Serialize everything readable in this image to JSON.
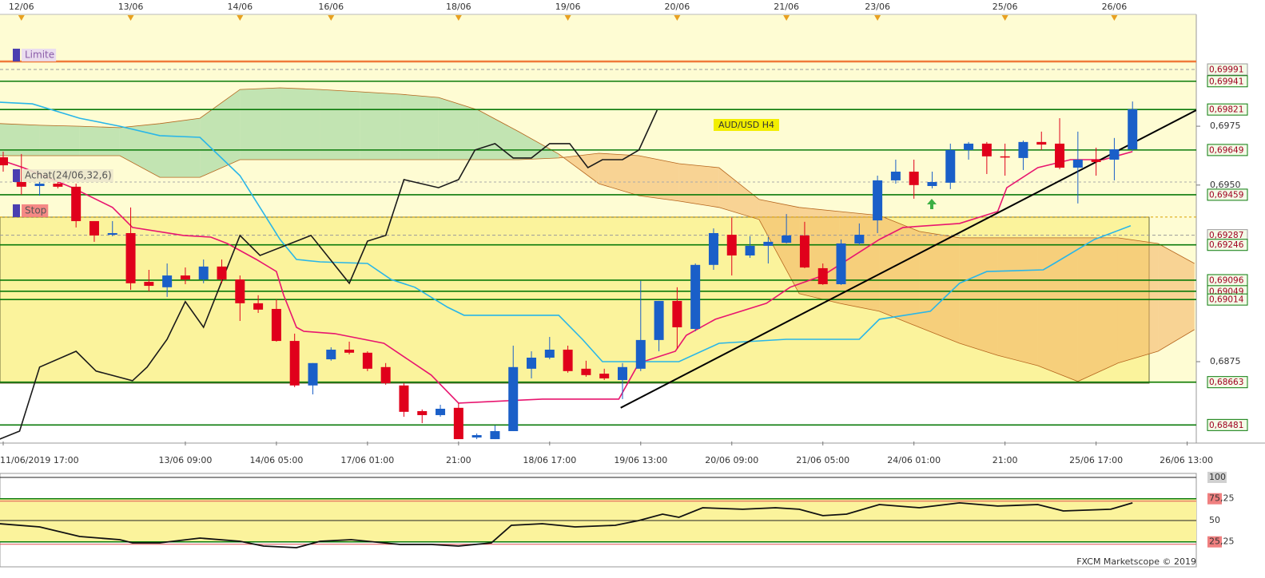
{
  "chart_data": {
    "type": "candlestick",
    "title": "AUD/USD H4",
    "up_color": "#1a5fc8",
    "down_color": "#e0001b",
    "open": [
      0.69618,
      0.69513,
      0.69496,
      0.69506,
      0.69493,
      0.69347,
      0.69289,
      0.69296,
      0.69089,
      0.69066,
      0.69116,
      0.69099,
      0.69154,
      0.69099,
      0.68998,
      0.68974,
      0.68838,
      0.68649,
      0.6876,
      0.68801,
      0.68788,
      0.68727,
      0.68649,
      0.6854,
      0.68523,
      0.68554,
      0.68428,
      0.68421,
      0.68455,
      0.6872,
      0.68767,
      0.68801,
      0.6872,
      0.68699,
      0.68672,
      0.6872,
      0.68842,
      0.69008,
      0.68889,
      0.69161,
      0.69289,
      0.69201,
      0.69242,
      0.69255,
      0.69286,
      0.69147,
      0.69079,
      0.69252,
      0.6935,
      0.6952,
      0.69557,
      0.69496,
      0.6951,
      0.69649,
      0.69676,
      0.69622,
      0.69615,
      0.69683,
      0.69676,
      0.69574,
      0.69608,
      0.69608,
      0.69652
    ],
    "high": [
      0.69642,
      0.69632,
      0.6952,
      0.69513,
      0.69506,
      0.69347,
      0.69347,
      0.69405,
      0.6914,
      0.69167,
      0.6915,
      0.69184,
      0.69184,
      0.69116,
      0.69032,
      0.69015,
      0.68869,
      0.68744,
      0.68811,
      0.68835,
      0.68794,
      0.68744,
      0.68659,
      0.68547,
      0.68567,
      0.68574,
      0.68445,
      0.68479,
      0.68818,
      0.68794,
      0.68855,
      0.68818,
      0.68754,
      0.6872,
      0.68744,
      0.69093,
      0.69008,
      0.69066,
      0.69167,
      0.69316,
      0.69361,
      0.69283,
      0.69279,
      0.69377,
      0.69344,
      0.69167,
      0.69269,
      0.69337,
      0.6954,
      0.69608,
      0.69608,
      0.69557,
      0.69676,
      0.69683,
      0.69683,
      0.69676,
      0.69689,
      0.69727,
      0.69784,
      0.69727,
      0.69659,
      0.697,
      0.69855
    ],
    "low": [
      0.69557,
      0.69459,
      0.69455,
      0.69486,
      0.6932,
      0.69259,
      0.69283,
      0.69055,
      0.69049,
      0.69025,
      0.69079,
      0.69083,
      0.69083,
      0.68923,
      0.68957,
      0.68835,
      0.68642,
      0.68611,
      0.68754,
      0.68781,
      0.6871,
      0.68652,
      0.68516,
      0.68489,
      0.68516,
      0.68421,
      0.68421,
      0.68421,
      0.68455,
      0.68679,
      0.6876,
      0.68703,
      0.68686,
      0.68672,
      0.68591,
      0.6871,
      0.68794,
      0.68805,
      0.68879,
      0.6914,
      0.69116,
      0.69191,
      0.69167,
      0.69252,
      0.69147,
      0.69076,
      0.69076,
      0.69245,
      0.69296,
      0.69506,
      0.69442,
      0.69486,
      0.69483,
      0.69608,
      0.69547,
      0.6954,
      0.69564,
      0.69649,
      0.69567,
      0.69422,
      0.6954,
      0.6952,
      0.69645
    ],
    "close": [
      0.69584,
      0.69493,
      0.69506,
      0.69493,
      0.69347,
      0.69286,
      0.69296,
      0.69083,
      0.69072,
      0.69116,
      0.69099,
      0.69154,
      0.69099,
      0.68998,
      0.68971,
      0.68838,
      0.68649,
      0.68744,
      0.68801,
      0.68788,
      0.6872,
      0.68659,
      0.68537,
      0.68523,
      0.6855,
      0.68421,
      0.68438,
      0.68455,
      0.68727,
      0.68767,
      0.68801,
      0.6871,
      0.68693,
      0.68679,
      0.68727,
      0.68842,
      0.69008,
      0.68896,
      0.69161,
      0.69296,
      0.69201,
      0.69242,
      0.69259,
      0.69286,
      0.6915,
      0.69079,
      0.69252,
      0.69289,
      0.6952,
      0.69557,
      0.695,
      0.69513,
      0.69649,
      0.69676,
      0.69622,
      0.69618,
      0.69683,
      0.69672,
      0.69574,
      0.69608,
      0.69598,
      0.69652,
      0.69822
    ],
    "xlim": [
      -0.175,
      65.5
    ],
    "ylim": [
      0.68411,
      0.70225
    ],
    "xticks": [
      {
        "value": 0,
        "label": "11/06/2019 17:00"
      },
      {
        "value": 10,
        "label": "13/06 09:00"
      },
      {
        "value": 15,
        "label": "14/06 05:00"
      },
      {
        "value": 20,
        "label": "17/06 01:00"
      },
      {
        "value": 25,
        "label": "21:00"
      },
      {
        "value": 30,
        "label": "18/06 17:00"
      },
      {
        "value": 35,
        "label": "19/06 13:00"
      },
      {
        "value": 40,
        "label": "20/06 09:00"
      },
      {
        "value": 45,
        "label": "21/06 05:00"
      },
      {
        "value": 50,
        "label": "24/06 01:00"
      },
      {
        "value": 55,
        "label": "21:00"
      },
      {
        "value": 60,
        "label": "25/06 17:00"
      },
      {
        "value": 65,
        "label": "26/06 13:00"
      }
    ],
    "x2ticks": [
      {
        "value": 1,
        "label": "12/06"
      },
      {
        "value": 7,
        "label": "13/06"
      },
      {
        "value": 13,
        "label": "14/06"
      },
      {
        "value": 18,
        "label": "16/06"
      },
      {
        "value": 25,
        "label": "18/06"
      },
      {
        "value": 31,
        "label": "19/06"
      },
      {
        "value": 37,
        "label": "20/06"
      },
      {
        "value": 43,
        "label": "21/06"
      },
      {
        "value": 48,
        "label": "23/06"
      },
      {
        "value": 55,
        "label": "25/06"
      },
      {
        "value": 61,
        "label": "26/06"
      }
    ],
    "yticks": [
      {
        "value": 0.6975,
        "label": "0,6975"
      },
      {
        "value": 0.695,
        "label": "0,6950"
      },
      {
        "value": 0.6875,
        "label": "0,6875"
      }
    ],
    "price_levels": [
      {
        "value": 0.69991,
        "label": "0,69991",
        "color": "#9a9a9a"
      },
      {
        "value": 0.69941,
        "label": "0,69941",
        "color": "#0a7a0a"
      },
      {
        "value": 0.69821,
        "label": "0,69821",
        "color": "#0a7a0a"
      },
      {
        "value": 0.69649,
        "label": "0,69649",
        "color": "#0a7a0a"
      },
      {
        "value": 0.69459,
        "label": "0,69459",
        "color": "#0a7a0a"
      },
      {
        "value": 0.69287,
        "label": "0,69287",
        "color": "#9a9a9a"
      },
      {
        "value": 0.69246,
        "label": "0,69246",
        "color": "#0a7a0a"
      },
      {
        "value": 0.69096,
        "label": "0,69096",
        "color": "#0a7a0a"
      },
      {
        "value": 0.69049,
        "label": "0,69049",
        "color": "#0a7a0a"
      },
      {
        "value": 0.69014,
        "label": "0,69014",
        "color": "#0a7a0a"
      },
      {
        "value": 0.68663,
        "label": "0,68663",
        "color": "#0a7a0a"
      },
      {
        "value": 0.68481,
        "label": "0,68481",
        "color": "#0a7a0a"
      }
    ],
    "orders": [
      {
        "label": "Limite",
        "value": 0.70025,
        "color": "#f07a3a"
      },
      {
        "label": "Achat(24/06,32,6)",
        "value": 0.69513,
        "color": "#aaaaaa"
      },
      {
        "label": "Stop",
        "value": 0.69364,
        "color": "#d9a000"
      }
    ],
    "cloud": {
      "x": [
        -0.2,
        2.0,
        4.2,
        6.4,
        8.6,
        10.8,
        13.0,
        15.2,
        17.4,
        19.6,
        21.8,
        23.9,
        26.1,
        28.3,
        30.5,
        32.7,
        34.9,
        37.1,
        39.3,
        41.5,
        43.7,
        45.9,
        48.1,
        50.3,
        52.5,
        54.6,
        56.8,
        59.0,
        61.2,
        63.4,
        65.4
      ],
      "span_a": [
        0.69761,
        0.69754,
        0.6975,
        0.69744,
        0.69761,
        0.69784,
        0.69906,
        0.69913,
        0.69906,
        0.69896,
        0.69886,
        0.69872,
        0.69818,
        0.69727,
        0.69632,
        0.69506,
        0.69455,
        0.69432,
        0.69405,
        0.69354,
        0.69039,
        0.68998,
        0.68964,
        0.68896,
        0.68828,
        0.68777,
        0.68733,
        0.68666,
        0.68744,
        0.68794,
        0.68886
      ],
      "span_b": [
        0.69625,
        0.69625,
        0.69625,
        0.69625,
        0.69533,
        0.69533,
        0.69608,
        0.69608,
        0.69608,
        0.69608,
        0.69608,
        0.69608,
        0.69608,
        0.69608,
        0.69615,
        0.69635,
        0.69625,
        0.69591,
        0.69574,
        0.69439,
        0.69405,
        0.69388,
        0.69371,
        0.69303,
        0.69276,
        0.69276,
        0.69276,
        0.69276,
        0.69276,
        0.69252,
        0.69167
      ],
      "up_color": "#8fcf98",
      "down_color": "#f2b060",
      "edge_color": "#b5651d"
    },
    "lines": [
      {
        "color": "#e8156f",
        "x": [
          -0.2,
          1.1,
          3.8,
          6.0,
          7.1,
          9.9,
          11.4,
          12.3,
          13.9,
          15.0,
          15.4,
          16.1,
          16.5,
          18.2,
          20.9,
          23.5,
          25.0,
          29.6,
          33.8,
          34.9,
          36.9,
          37.5,
          39.1,
          41.9,
          43.2,
          45.0,
          48.1,
          49.4,
          52.5,
          54.6,
          55.1,
          56.8,
          58.6,
          60.4,
          62.0
        ],
        "values": [
          0.69608,
          0.69574,
          0.69489,
          0.69405,
          0.6932,
          0.69286,
          0.69279,
          0.69252,
          0.69184,
          0.69133,
          0.69032,
          0.68896,
          0.68879,
          0.68869,
          0.68828,
          0.68693,
          0.68574,
          0.68591,
          0.68591,
          0.68744,
          0.68794,
          0.68862,
          0.6893,
          0.68998,
          0.69066,
          0.69116,
          0.69269,
          0.6932,
          0.69337,
          0.69388,
          0.69489,
          0.69574,
          0.69608,
          0.69608,
          0.69642
        ]
      },
      {
        "color": "#29b6e8",
        "x": [
          -0.2,
          1.6,
          4.2,
          6.4,
          8.6,
          10.8,
          13.0,
          15.2,
          16.1,
          17.4,
          20.0,
          21.3,
          22.6,
          24.4,
          25.3,
          30.5,
          31.8,
          32.9,
          37.1,
          39.3,
          43.0,
          47.0,
          48.1,
          50.9,
          52.5,
          54.0,
          57.1,
          57.7,
          59.9,
          61.9
        ],
        "values": [
          0.69852,
          0.69845,
          0.69784,
          0.6975,
          0.6971,
          0.69703,
          0.6954,
          0.69269,
          0.69184,
          0.69174,
          0.69167,
          0.69099,
          0.69066,
          0.68981,
          0.68947,
          0.68947,
          0.68845,
          0.6875,
          0.6875,
          0.68828,
          0.68845,
          0.68845,
          0.6893,
          0.68964,
          0.69083,
          0.69133,
          0.6914,
          0.69167,
          0.69269,
          0.69327
        ]
      },
      {
        "color": "#1a1a1a",
        "x": [
          -0.2,
          0.9,
          2.0,
          4.0,
          5.1,
          7.1,
          7.9,
          9.0,
          10.0,
          11.0,
          13.0,
          14.1,
          16.9,
          19.0,
          20.0,
          21.0,
          22.0,
          23.9,
          25.0,
          25.9,
          27.0,
          28.0,
          29.0,
          30.0,
          31.1,
          32.1,
          32.9,
          34.0,
          34.9,
          35.9
        ],
        "values": [
          0.68421,
          0.68455,
          0.68727,
          0.68794,
          0.6871,
          0.68669,
          0.68727,
          0.68845,
          0.69005,
          0.68896,
          0.69286,
          0.69201,
          0.69286,
          0.69083,
          0.69262,
          0.69286,
          0.69523,
          0.69489,
          0.69523,
          0.69649,
          0.69676,
          0.69615,
          0.69615,
          0.69676,
          0.69676,
          0.69574,
          0.69608,
          0.69608,
          0.69649,
          0.69818
        ]
      },
      {
        "color": "#000000",
        "x": [
          33.9,
          65.5
        ],
        "values": [
          0.68554,
          0.69818
        ]
      }
    ],
    "oscillator": {
      "color": "#111111",
      "ylim": [
        -3.7,
        104.6
      ],
      "yticks": [
        100,
        {
          "value": 75.25,
          "label": "75,25"
        },
        50,
        {
          "value": 25.25,
          "label": "25,25"
        }
      ],
      "x": [
        -0.2,
        2.0,
        4.2,
        6.4,
        7.1,
        8.6,
        10.8,
        13.0,
        14.3,
        16.1,
        17.4,
        19.1,
        21.8,
        23.5,
        25.0,
        26.8,
        27.9,
        29.6,
        31.4,
        33.6,
        34.9,
        36.2,
        37.1,
        38.4,
        40.6,
        42.4,
        43.7,
        45.0,
        46.3,
        48.1,
        50.3,
        52.5,
        54.6,
        56.8,
        58.2,
        60.8,
        62.0
      ],
      "values": [
        46.3,
        42.6,
        31.5,
        27.8,
        24.1,
        24.1,
        29.6,
        25.9,
        20.4,
        18.5,
        25.9,
        27.8,
        22.2,
        22.2,
        20.4,
        24.1,
        44.4,
        46.3,
        42.6,
        44.4,
        50,
        57.4,
        53.7,
        64.8,
        63.0,
        64.8,
        63.0,
        55.6,
        57.4,
        68.5,
        64.8,
        70.4,
        66.7,
        68.5,
        61.1,
        63.0,
        70.4
      ]
    },
    "footer": "FXCM Marketscope © 2019"
  }
}
